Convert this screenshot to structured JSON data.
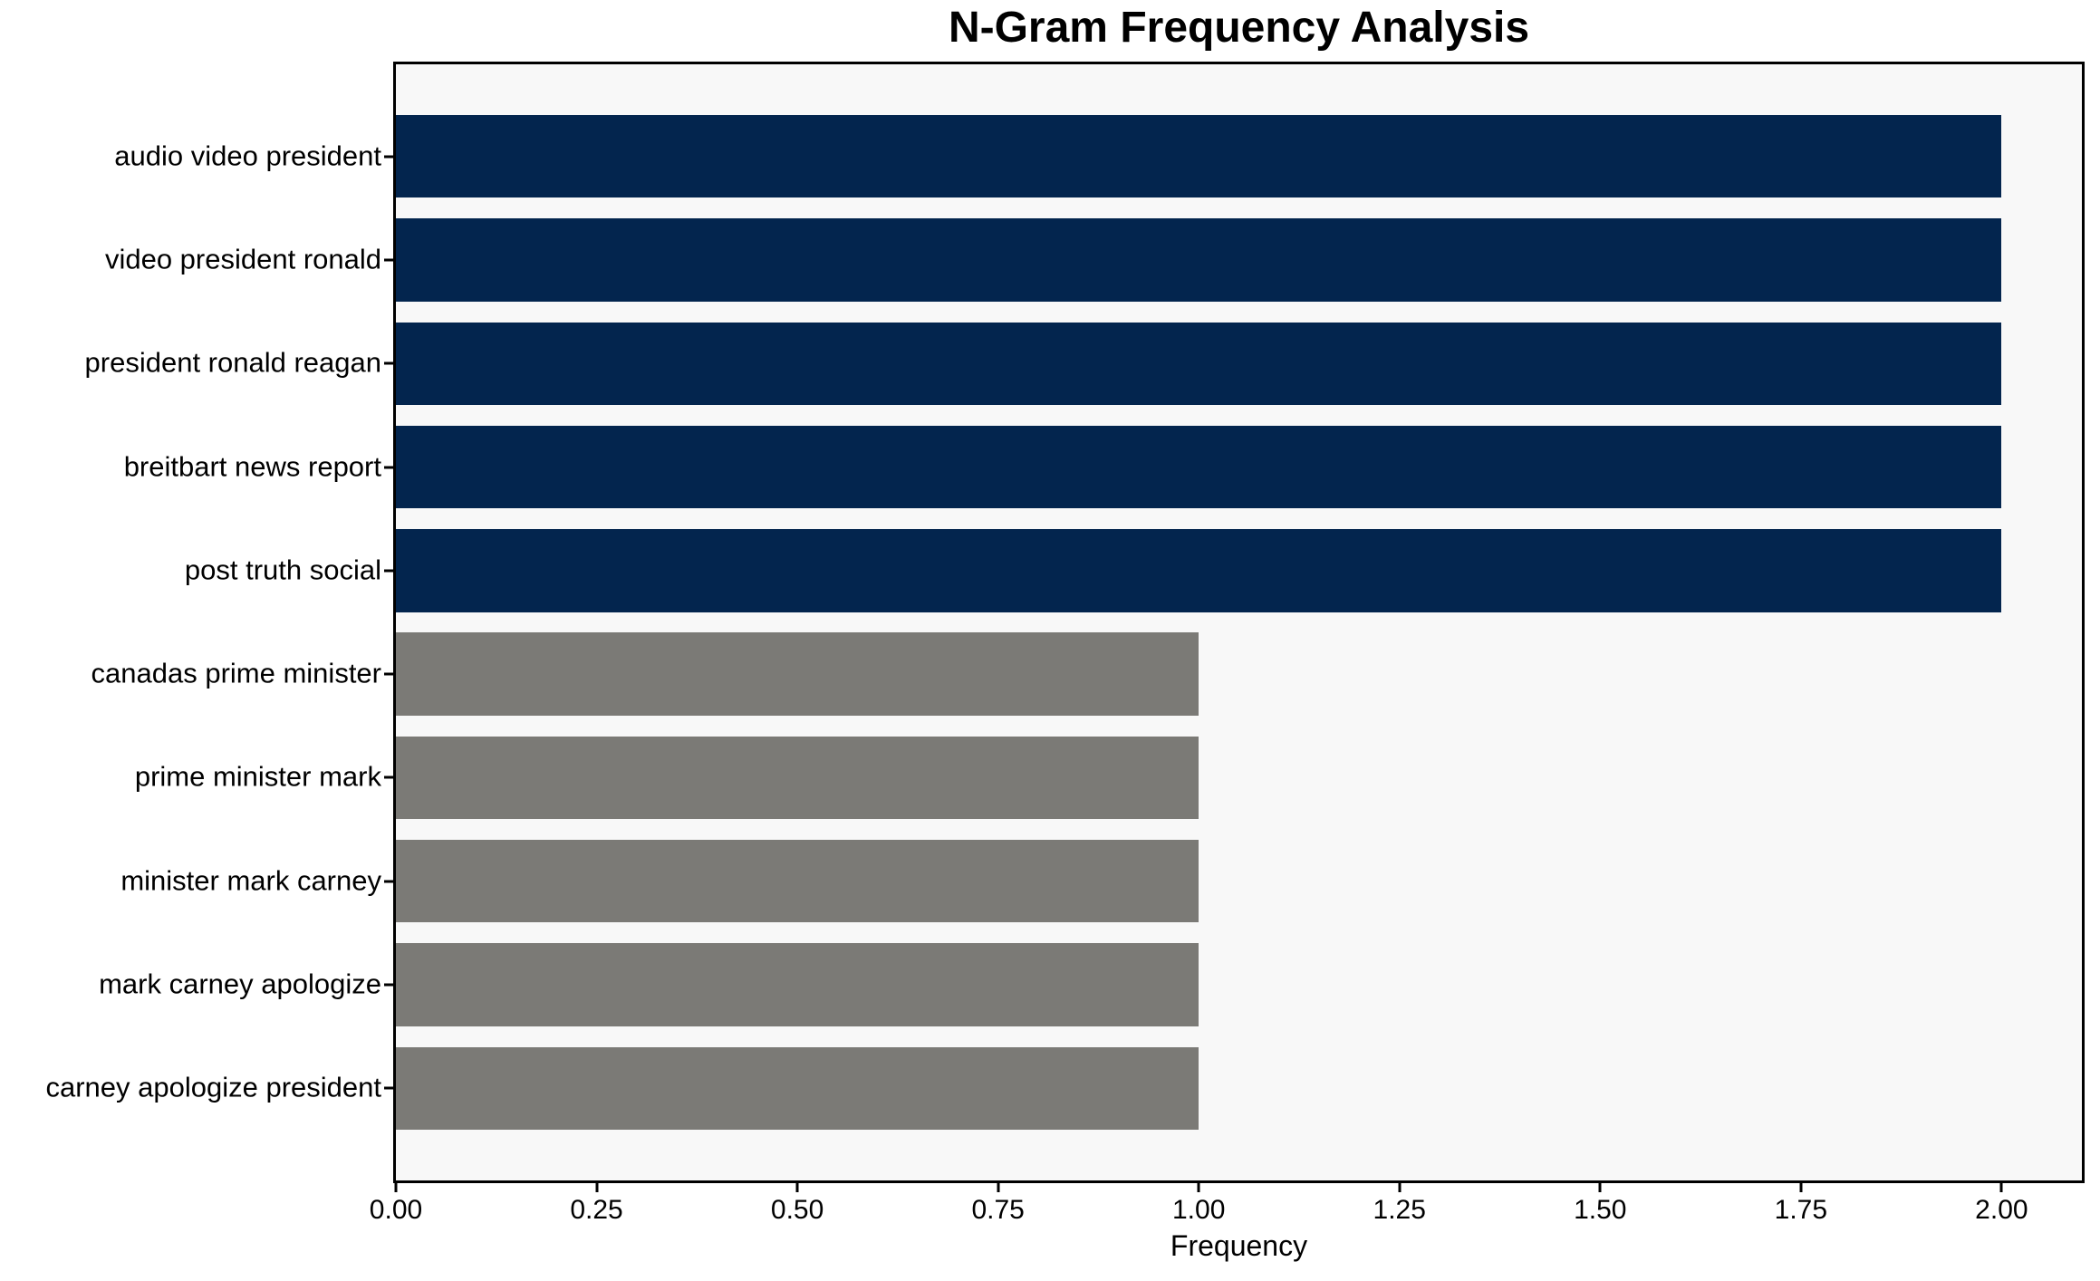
{
  "chart_data": {
    "type": "bar",
    "orientation": "horizontal",
    "title": "N-Gram Frequency Analysis",
    "xlabel": "Frequency",
    "ylabel": "",
    "categories": [
      "audio video president",
      "video president ronald",
      "president ronald reagan",
      "breitbart news report",
      "post truth social",
      "canadas prime minister",
      "prime minister mark",
      "minister mark carney",
      "mark carney apologize",
      "carney apologize president"
    ],
    "values": [
      2,
      2,
      2,
      2,
      2,
      1,
      1,
      1,
      1,
      1
    ],
    "bar_colors": [
      "#03254e",
      "#03254e",
      "#03254e",
      "#03254e",
      "#03254e",
      "#7b7a76",
      "#7b7a76",
      "#7b7a76",
      "#7b7a76",
      "#7b7a76"
    ],
    "xlim": [
      0,
      2.1
    ],
    "x_tick_labels": [
      "0.00",
      "0.25",
      "0.50",
      "0.75",
      "1.00",
      "1.25",
      "1.50",
      "1.75",
      "2.00"
    ],
    "x_tick_values": [
      0,
      0.25,
      0.5,
      0.75,
      1.0,
      1.25,
      1.5,
      1.75,
      2.0
    ],
    "grid": false,
    "legend_position": "none",
    "plot_background": "#f8f8f8",
    "figure_background": "#ffffff",
    "spine_color": "#000000",
    "text_color": "#000000",
    "bar_height_fraction": 0.8
  }
}
